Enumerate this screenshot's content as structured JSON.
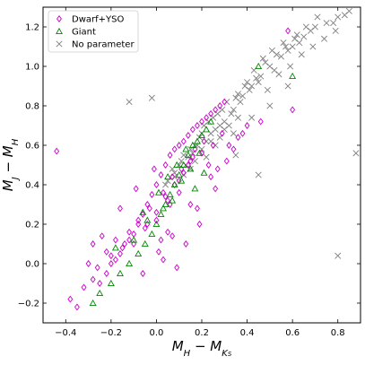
{
  "chart_data": {
    "type": "scatter",
    "xlabel": "M_H − M_Ks",
    "ylabel": "M_J − M_H",
    "xlim": [
      -0.5,
      0.9
    ],
    "ylim": [
      -0.3,
      1.3
    ],
    "x_ticks": [
      -0.4,
      -0.2,
      0.0,
      0.2,
      0.4,
      0.6,
      0.8
    ],
    "x_tick_labels": [
      "−0.4",
      "−0.2",
      "0.0",
      "0.2",
      "0.4",
      "0.6",
      "0.8"
    ],
    "y_ticks": [
      -0.2,
      0.0,
      0.2,
      0.4,
      0.6,
      0.8,
      1.0,
      1.2
    ],
    "y_tick_labels": [
      "−0.2",
      "0.0",
      "0.2",
      "0.4",
      "0.6",
      "0.8",
      "1.0",
      "1.2"
    ],
    "grid": false,
    "legend_position": "top-left",
    "series": [
      {
        "name": "No parameter",
        "marker": "x",
        "color": "#808080",
        "x": [
          0.22,
          0.26,
          0.3,
          0.34,
          0.38,
          0.42,
          0.46,
          0.5,
          0.55,
          0.6,
          0.65,
          0.7,
          0.75,
          0.8,
          0.85,
          0.18,
          0.24,
          0.28,
          0.33,
          0.37,
          0.41,
          0.45,
          0.52,
          0.58,
          0.63,
          0.68,
          0.12,
          0.15,
          0.19,
          0.21,
          0.25,
          0.29,
          0.35,
          0.39,
          0.44,
          0.48,
          0.53,
          0.57,
          0.61,
          0.66,
          0.71,
          0.1,
          0.14,
          0.17,
          0.2,
          0.23,
          0.27,
          0.31,
          0.36,
          0.4,
          0.43,
          0.47,
          0.51,
          0.56,
          0.62,
          0.08,
          0.11,
          0.16,
          0.24,
          0.32,
          0.49,
          0.54,
          0.59,
          0.64,
          0.69,
          0.74,
          0.78,
          0.83,
          0.05,
          0.07,
          0.13,
          0.2,
          0.26,
          0.34,
          0.42,
          0.5,
          0.58,
          0.79,
          0.12,
          0.17,
          0.22,
          0.28,
          0.3,
          0.36,
          0.04,
          0.08,
          0.15,
          -0.12,
          -0.02,
          0.35,
          0.45,
          0.8,
          0.88
        ],
        "y": [
          0.62,
          0.68,
          0.72,
          0.78,
          0.85,
          0.9,
          0.95,
          1.0,
          1.05,
          1.1,
          1.15,
          1.2,
          1.22,
          1.25,
          1.28,
          0.6,
          0.66,
          0.7,
          0.76,
          0.82,
          0.88,
          0.92,
          0.98,
          1.08,
          1.12,
          1.18,
          0.55,
          0.58,
          0.64,
          0.7,
          0.74,
          0.78,
          0.84,
          0.9,
          0.94,
          1.02,
          1.06,
          1.1,
          1.14,
          1.2,
          1.25,
          0.5,
          0.54,
          0.6,
          0.66,
          0.72,
          0.76,
          0.82,
          0.86,
          0.92,
          0.98,
          1.04,
          1.08,
          1.12,
          1.16,
          0.46,
          0.52,
          0.56,
          0.62,
          0.7,
          0.88,
          0.96,
          1.0,
          1.06,
          1.1,
          1.14,
          1.22,
          1.26,
          0.42,
          0.48,
          0.5,
          0.58,
          0.6,
          0.66,
          0.74,
          0.8,
          0.9,
          1.18,
          0.45,
          0.52,
          0.54,
          0.64,
          0.68,
          0.74,
          0.4,
          0.44,
          0.48,
          0.82,
          0.84,
          0.55,
          0.45,
          0.04,
          0.56
        ]
      },
      {
        "name": "Dwarf+YSO",
        "marker": "diamond",
        "color": "#cc00cc",
        "x": [
          -0.44,
          -0.38,
          -0.32,
          -0.28,
          -0.25,
          -0.22,
          -0.2,
          -0.18,
          -0.16,
          -0.14,
          -0.12,
          -0.1,
          -0.08,
          -0.06,
          -0.04,
          -0.02,
          0.0,
          0.02,
          0.04,
          0.06,
          0.08,
          0.1,
          0.12,
          0.14,
          0.16,
          0.18,
          0.2,
          0.22,
          0.24,
          0.26,
          0.28,
          0.3,
          -0.3,
          -0.26,
          -0.2,
          -0.15,
          -0.1,
          -0.05,
          0.0,
          0.05,
          0.1,
          0.15,
          0.2,
          0.25,
          -0.22,
          -0.18,
          -0.12,
          -0.08,
          -0.03,
          0.03,
          0.07,
          0.11,
          0.17,
          0.21,
          -0.04,
          0.0,
          0.04,
          0.08,
          0.12,
          0.16,
          0.06,
          0.1,
          0.14,
          0.02,
          0.24,
          0.32,
          0.36,
          0.4,
          0.46,
          0.58,
          0.6,
          -0.35,
          -0.28,
          0.18,
          0.26,
          0.34,
          -0.06,
          0.09,
          0.13,
          0.19,
          0.01,
          0.05,
          -0.01,
          0.03,
          0.07,
          0.15,
          0.23,
          0.29,
          -0.24,
          -0.16,
          -0.09,
          0.27,
          0.31,
          0.38
        ],
        "y": [
          0.57,
          -0.18,
          -0.12,
          -0.08,
          -0.1,
          -0.05,
          0.0,
          0.02,
          0.05,
          0.1,
          0.12,
          0.15,
          0.2,
          0.25,
          0.3,
          0.35,
          0.4,
          0.45,
          0.5,
          0.55,
          0.58,
          0.6,
          0.62,
          0.65,
          0.68,
          0.7,
          0.72,
          0.74,
          0.76,
          0.78,
          0.8,
          0.82,
          0.0,
          -0.02,
          0.04,
          0.08,
          0.1,
          0.18,
          0.22,
          0.32,
          0.42,
          0.52,
          0.56,
          0.6,
          0.06,
          0.12,
          0.16,
          0.22,
          0.28,
          0.36,
          0.44,
          0.48,
          0.58,
          0.62,
          0.2,
          0.26,
          0.34,
          0.4,
          0.46,
          0.54,
          0.3,
          0.36,
          0.5,
          0.12,
          0.44,
          0.6,
          0.64,
          0.7,
          0.72,
          1.18,
          0.78,
          -0.22,
          0.1,
          0.28,
          0.38,
          0.58,
          -0.05,
          -0.02,
          0.1,
          0.2,
          0.06,
          0.16,
          0.48,
          0.02,
          0.14,
          0.3,
          0.5,
          0.66,
          0.14,
          0.28,
          0.38,
          0.48,
          0.52,
          0.66
        ]
      },
      {
        "name": "Giant",
        "marker": "triangle",
        "color": "#008800",
        "x": [
          -0.25,
          -0.2,
          -0.16,
          -0.12,
          -0.08,
          -0.05,
          -0.02,
          0.0,
          0.02,
          0.04,
          0.06,
          0.08,
          0.1,
          0.12,
          0.14,
          0.16,
          0.18,
          0.2,
          0.22,
          0.24,
          -0.18,
          -0.1,
          -0.04,
          0.03,
          0.07,
          0.11,
          0.15,
          0.19,
          0.09,
          0.13,
          0.05,
          0.01,
          -0.06,
          0.17,
          0.21,
          0.6,
          0.45,
          -0.28
        ],
        "y": [
          -0.15,
          -0.1,
          -0.05,
          0.0,
          0.05,
          0.1,
          0.15,
          0.2,
          0.25,
          0.3,
          0.35,
          0.4,
          0.45,
          0.5,
          0.55,
          0.6,
          0.62,
          0.65,
          0.68,
          0.72,
          0.08,
          0.12,
          0.22,
          0.28,
          0.32,
          0.42,
          0.48,
          0.56,
          0.5,
          0.58,
          0.44,
          0.36,
          0.26,
          0.38,
          0.46,
          0.95,
          1.0,
          -0.2
        ]
      }
    ]
  }
}
